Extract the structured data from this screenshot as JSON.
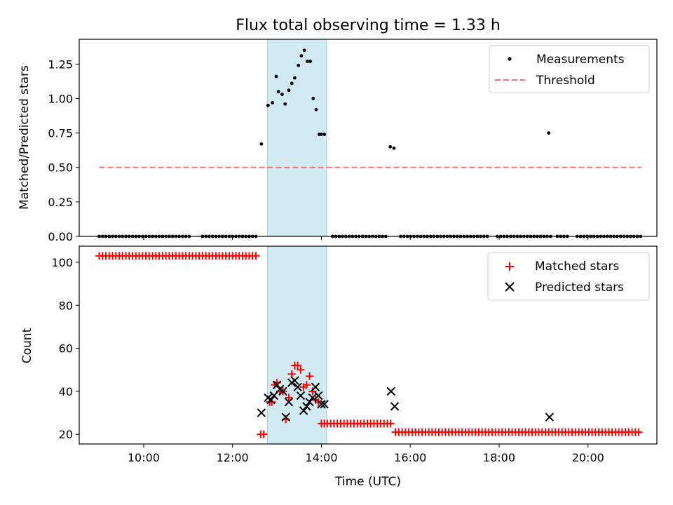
{
  "title": "Flux total observing time = 1.33 h",
  "colors": {
    "measurement": "#000000",
    "threshold": "#ff7070",
    "matched": "#ff0000",
    "predicted": "#000000",
    "highlight": "#add8e6"
  },
  "chart_data": [
    {
      "type": "scatter",
      "panel": "top",
      "xlabel": "",
      "ylabel": "Matched/Predicted stars",
      "xlim": [
        "08:33",
        "21:33"
      ],
      "ylim": [
        0,
        1.43
      ],
      "yticks": [
        0,
        0.25,
        0.5,
        0.75,
        1.0,
        1.25
      ],
      "ytick_labels": [
        "0.00",
        "0.25",
        "0.50",
        "0.75",
        "1.00",
        "1.25"
      ],
      "highlight_span": [
        "12:47",
        "14:07"
      ],
      "legend": {
        "position": "top-right",
        "entries": [
          "Measurements",
          "Threshold"
        ]
      },
      "grid": false,
      "series": [
        {
          "name": "Measurements",
          "style": "dots",
          "x_unit": "time",
          "zero_runs": [
            [
              "09:00",
              "12:35"
            ],
            [
              "14:15",
              "15:30"
            ],
            [
              "15:47",
              "21:12"
            ]
          ],
          "zero_gaps": [
            [
              "11:05",
              "11:15"
            ],
            [
              "17:48",
              "17:55"
            ],
            [
              "19:10",
              "19:17"
            ],
            [
              "19:35",
              "19:43"
            ]
          ],
          "x": [
            "12:39",
            "12:48",
            "12:54",
            "12:59",
            "13:02",
            "13:07",
            "13:11",
            "13:16",
            "13:20",
            "13:24",
            "13:29",
            "13:33",
            "13:37",
            "13:41",
            "13:45",
            "13:49",
            "13:53",
            "13:57",
            "14:00",
            "14:04",
            "15:33",
            "15:38",
            "19:07"
          ],
          "y": [
            0.67,
            0.95,
            0.97,
            1.16,
            1.05,
            1.03,
            0.96,
            1.06,
            1.11,
            1.15,
            1.24,
            1.31,
            1.35,
            1.27,
            1.27,
            1.0,
            0.92,
            0.74,
            0.74,
            0.74,
            0.65,
            0.64,
            0.75
          ]
        },
        {
          "name": "Threshold",
          "style": "dashed-line",
          "x": [
            "09:00",
            "21:12"
          ],
          "y": [
            0.5,
            0.5
          ]
        }
      ]
    },
    {
      "type": "scatter",
      "panel": "bottom",
      "xlabel": "Time (UTC)",
      "ylabel": "Count",
      "xlim": [
        "08:33",
        "21:33"
      ],
      "ylim": [
        15.5,
        107.5
      ],
      "xticks": [
        "10:00",
        "12:00",
        "14:00",
        "16:00",
        "18:00",
        "20:00"
      ],
      "yticks": [
        20,
        40,
        60,
        80,
        100
      ],
      "highlight_span": [
        "12:47",
        "14:07"
      ],
      "legend": {
        "position": "top-right",
        "entries": [
          "Matched stars",
          "Predicted stars"
        ]
      },
      "grid": false,
      "series": [
        {
          "name": "Matched stars",
          "marker": "plus",
          "runs": [
            {
              "from": "09:00",
              "to": "12:35",
              "value": 103
            },
            {
              "from": "14:08",
              "to": "15:35",
              "value": 25
            },
            {
              "from": "15:40",
              "to": "21:12",
              "value": 21
            }
          ],
          "x": [
            "12:38",
            "12:42",
            "12:50",
            "12:53",
            "12:57",
            "13:00",
            "13:04",
            "13:08",
            "13:12",
            "13:16",
            "13:20",
            "13:24",
            "13:28",
            "13:32",
            "13:36",
            "13:40",
            "13:44",
            "13:48",
            "13:52",
            "13:56",
            "14:00",
            "14:04"
          ],
          "y": [
            20,
            20,
            35,
            35,
            43,
            44,
            40,
            40,
            27,
            37,
            48,
            52,
            52,
            50,
            42,
            43,
            47,
            40,
            36,
            35,
            25,
            25
          ]
        },
        {
          "name": "Predicted stars",
          "marker": "x",
          "x": [
            "12:39",
            "12:48",
            "12:52",
            "12:56",
            "13:00",
            "13:04",
            "13:08",
            "13:12",
            "13:16",
            "13:20",
            "13:24",
            "13:28",
            "13:32",
            "13:36",
            "13:40",
            "13:44",
            "13:48",
            "13:52",
            "13:56",
            "14:00",
            "14:04",
            "15:34",
            "15:39",
            "19:08"
          ],
          "y": [
            30,
            37,
            36,
            38,
            43,
            41,
            40,
            28,
            35,
            44,
            45,
            42,
            38,
            31,
            33,
            35,
            37,
            42,
            38,
            34,
            34,
            40,
            33,
            28
          ]
        }
      ]
    }
  ]
}
